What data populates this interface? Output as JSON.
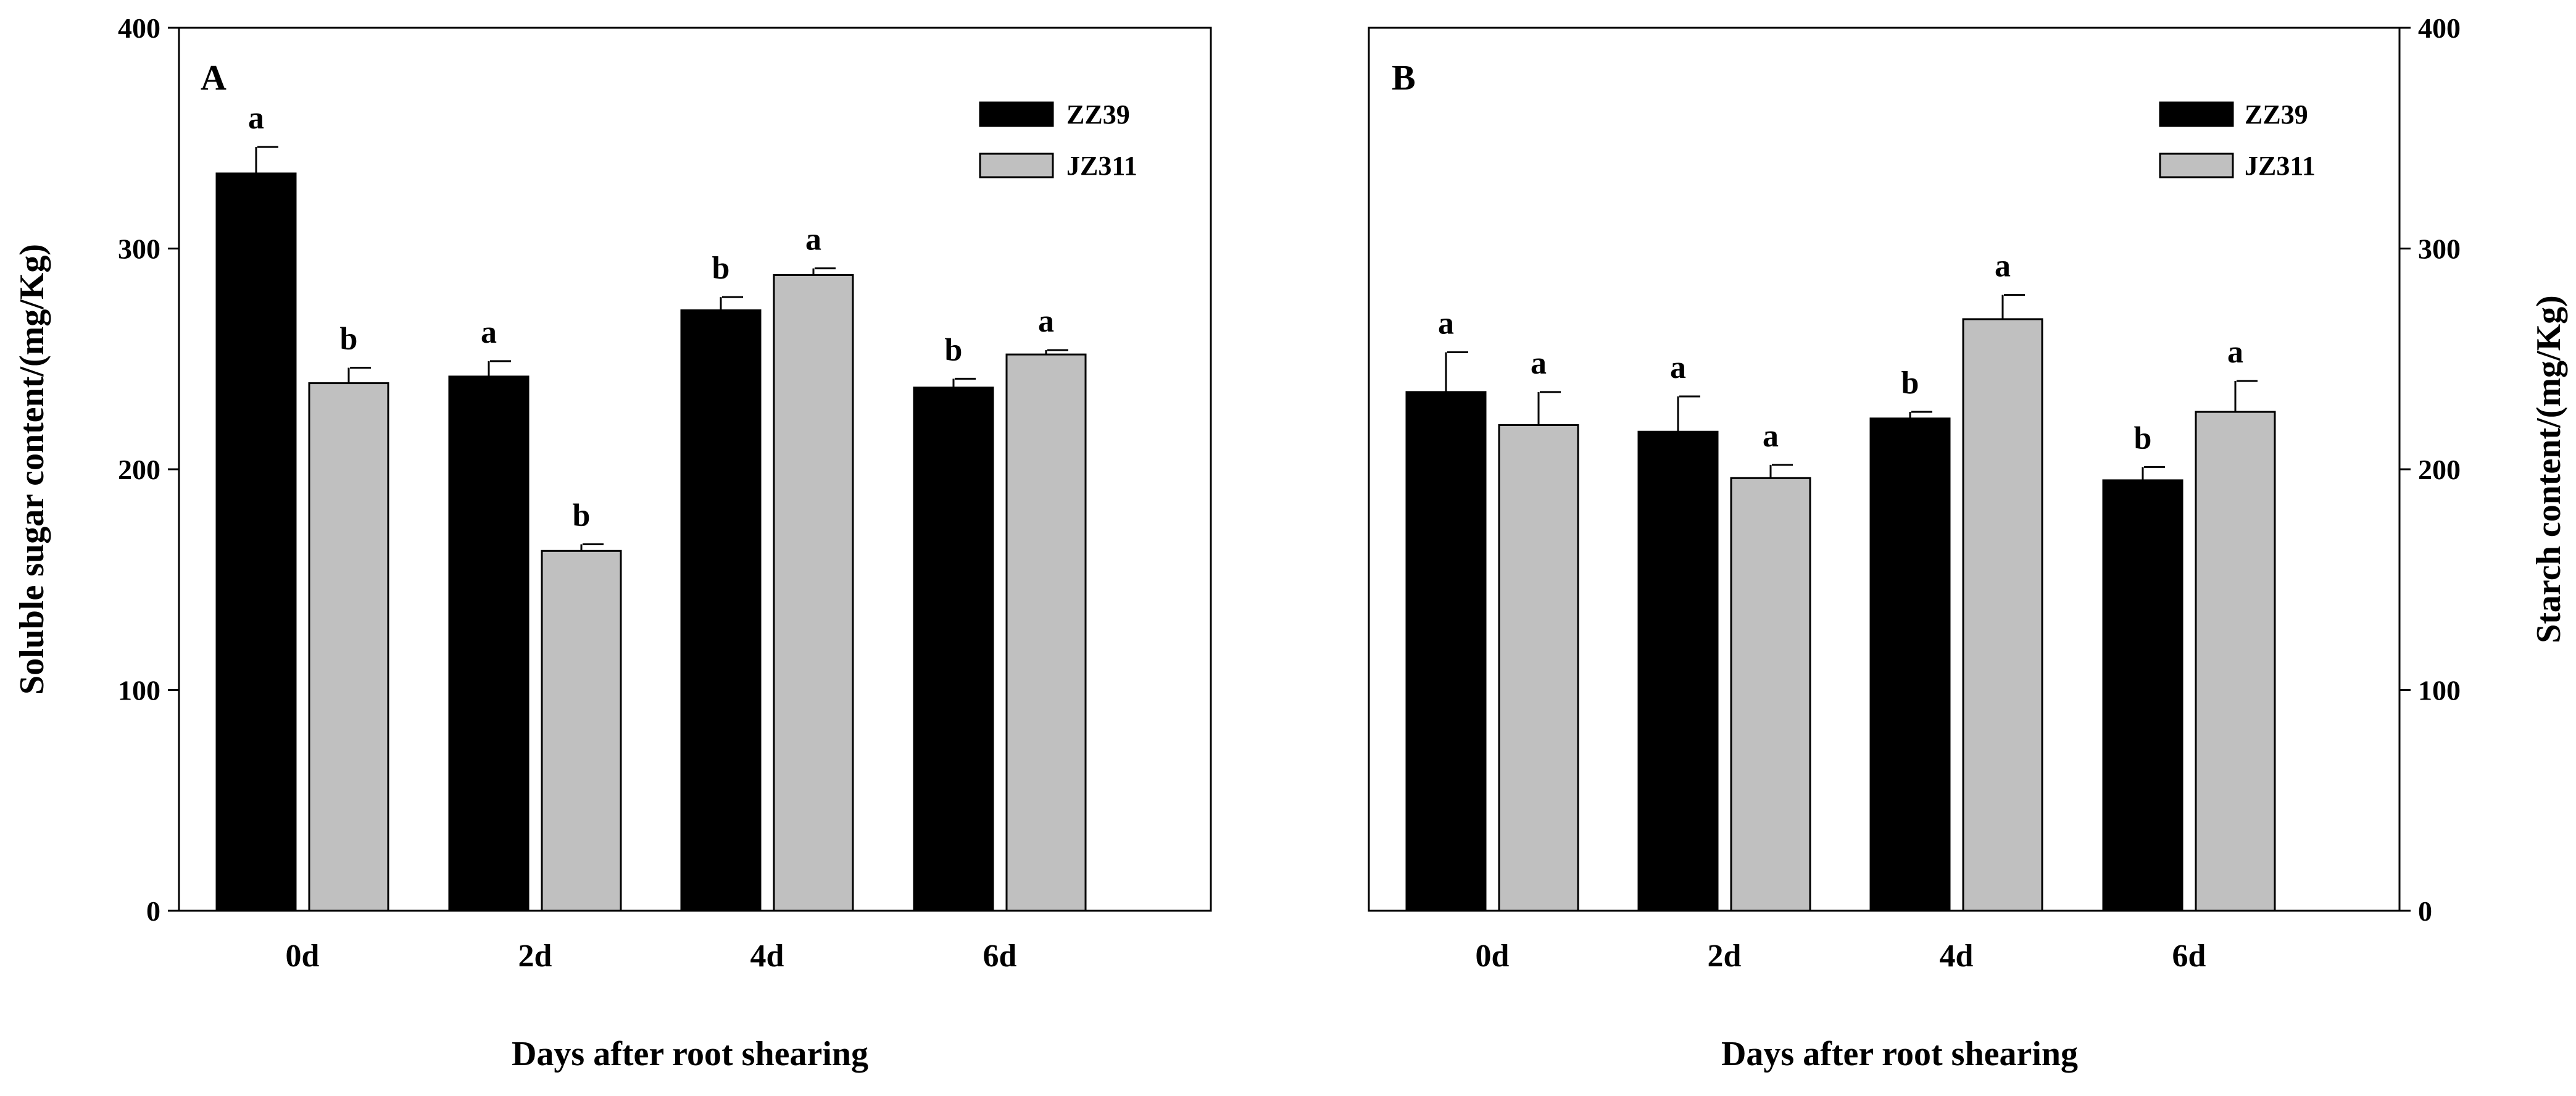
{
  "colors": {
    "ZZ39": "#000000",
    "JZ311": "#c0c0c0",
    "axis": "#000000"
  },
  "chart_data": [
    {
      "type": "bar",
      "panel_label": "A",
      "categories": [
        "0d",
        "2d",
        "4d",
        "6d"
      ],
      "series": [
        {
          "name": "ZZ39",
          "values": [
            334,
            242,
            272,
            237
          ],
          "errors": [
            12,
            7,
            6,
            4
          ],
          "letters": [
            "a",
            "a",
            "b",
            "b"
          ]
        },
        {
          "name": "JZ311",
          "values": [
            239,
            163,
            288,
            252
          ],
          "errors": [
            7,
            3,
            3,
            2
          ],
          "letters": [
            "b",
            "b",
            "a",
            "a"
          ]
        }
      ],
      "xlabel": "Days after root shearing",
      "ylabel": "Soluble sugar content/(mg/Kg)",
      "ylim": [
        0,
        400
      ],
      "yticks": [
        "0",
        "100",
        "200",
        "300",
        "400"
      ],
      "legend_position": "top-right",
      "y_axis_side": "left",
      "grid": false
    },
    {
      "type": "bar",
      "panel_label": "B",
      "categories": [
        "0d",
        "2d",
        "4d",
        "6d"
      ],
      "series": [
        {
          "name": "ZZ39",
          "values": [
            235,
            217,
            223,
            195
          ],
          "errors": [
            18,
            16,
            3,
            6
          ],
          "letters": [
            "a",
            "a",
            "b",
            "b"
          ]
        },
        {
          "name": "JZ311",
          "values": [
            220,
            196,
            268,
            226
          ],
          "errors": [
            15,
            6,
            11,
            14
          ],
          "letters": [
            "a",
            "a",
            "a",
            "a"
          ]
        }
      ],
      "xlabel": "Days after root shearing",
      "ylabel": "Starch content/(mg/Kg)",
      "ylim": [
        0,
        400
      ],
      "yticks": [
        "0",
        "100",
        "200",
        "300",
        "400"
      ],
      "legend_position": "top-right",
      "y_axis_side": "right",
      "grid": false
    }
  ]
}
